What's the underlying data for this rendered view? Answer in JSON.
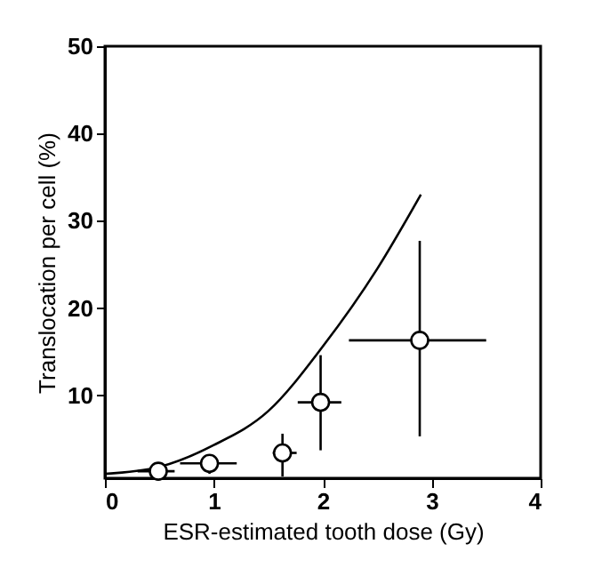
{
  "chart_data": {
    "type": "scatter",
    "xlabel": "ESR-estimated tooth dose (Gy)",
    "ylabel": "Translocation per cell (%)",
    "xlim": [
      0,
      4
    ],
    "ylim": [
      0.5,
      50
    ],
    "xticks": [
      0,
      1,
      2,
      3,
      4
    ],
    "yticks": [
      10,
      20,
      30,
      40,
      50
    ],
    "grid": false,
    "series": [
      {
        "type": "line",
        "color": "#000000",
        "line_style": "solid",
        "marker": "none",
        "x": [
          0,
          0.5,
          1,
          1.5,
          2,
          2.5,
          2.9
        ],
        "values": [
          1,
          1.8,
          4.3,
          8.2,
          15.6,
          24.5,
          33
        ]
      },
      {
        "color": "#000000",
        "marker": "circle",
        "x": [
          0.49,
          0.96,
          1.63,
          1.98,
          2.89
        ],
        "values": [
          1.3,
          2.2,
          3.4,
          9.2,
          16.3
        ],
        "errors": [
          null,
          [
            1.0,
            2.9
          ],
          [
            0.7,
            5.6
          ],
          [
            3.7,
            14.6
          ],
          [
            5.3,
            27.7
          ]
        ],
        "xerrors": [
          [
            0.3,
            0.64
          ],
          [
            0.69,
            1.21
          ],
          [
            1.54,
            1.76
          ],
          [
            1.77,
            2.17
          ],
          [
            2.24,
            3.5
          ]
        ]
      }
    ]
  }
}
